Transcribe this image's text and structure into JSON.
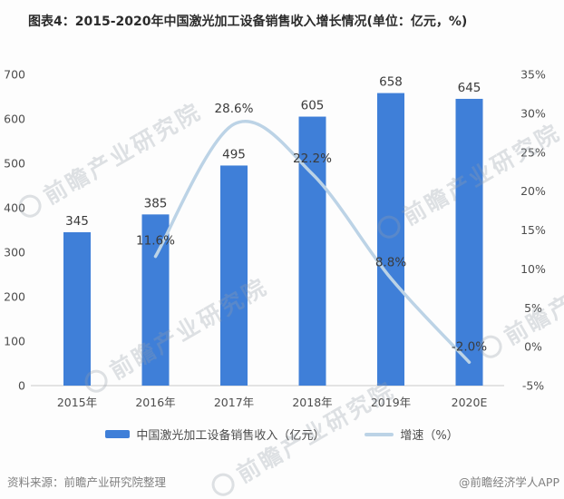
{
  "title": "图表4：2015-2020年中国激光加工设备销售收入增长情况(单位：亿元，%)",
  "colors": {
    "bar_fill": "#3F7FD8",
    "line_stroke": "#BCD3E6",
    "axis_line": "#D4D4D4",
    "axis_label": "#4D4D4D",
    "value_label": "#3A3A3A",
    "title_text": "#2B2B2B",
    "footer_text": "#808080",
    "background": "#FDFDFD"
  },
  "chart_data": {
    "type": "bar+line",
    "title": "图表4：2015-2020年中国激光加工设备销售收入增长情况(单位：亿元，%)",
    "categories": [
      "2015年",
      "2016年",
      "2017年",
      "2018年",
      "2019年",
      "2020E"
    ],
    "series": [
      {
        "name": "中国激光加工设备销售收入（亿元）",
        "type": "bar",
        "axis": "left",
        "values": [
          345,
          385,
          495,
          605,
          658,
          645
        ],
        "value_labels": [
          "345",
          "385",
          "495",
          "605",
          "658",
          "645"
        ]
      },
      {
        "name": "增速（%）",
        "type": "line",
        "axis": "right",
        "smooth": true,
        "values": [
          null,
          11.6,
          28.6,
          22.2,
          8.8,
          -2.0
        ],
        "point_labels": [
          "",
          "11.6%",
          "28.6%",
          "22.2%",
          "8.8%",
          "-2.0%"
        ]
      }
    ],
    "left_axis": {
      "min": 0,
      "max": 700,
      "step": 100,
      "labels": [
        "0",
        "100",
        "200",
        "300",
        "400",
        "500",
        "600",
        "700"
      ]
    },
    "right_axis": {
      "min": -5,
      "max": 35,
      "step": 5,
      "suffix": "%",
      "labels": [
        "-5%",
        "0%",
        "5%",
        "10%",
        "15%",
        "20%",
        "25%",
        "30%",
        "35%"
      ]
    },
    "grid": false,
    "legend_position": "bottom"
  },
  "legend": {
    "items": [
      {
        "label": "中国激光加工设备销售收入（亿元）",
        "swatch": "bar"
      },
      {
        "label": "增速（%）",
        "swatch": "line"
      }
    ]
  },
  "footer": {
    "source": "资料来源：前瞻产业研究院整理",
    "credit": "@前瞻经济学人APP"
  },
  "watermark": {
    "text": "前瞻产业研究院"
  }
}
